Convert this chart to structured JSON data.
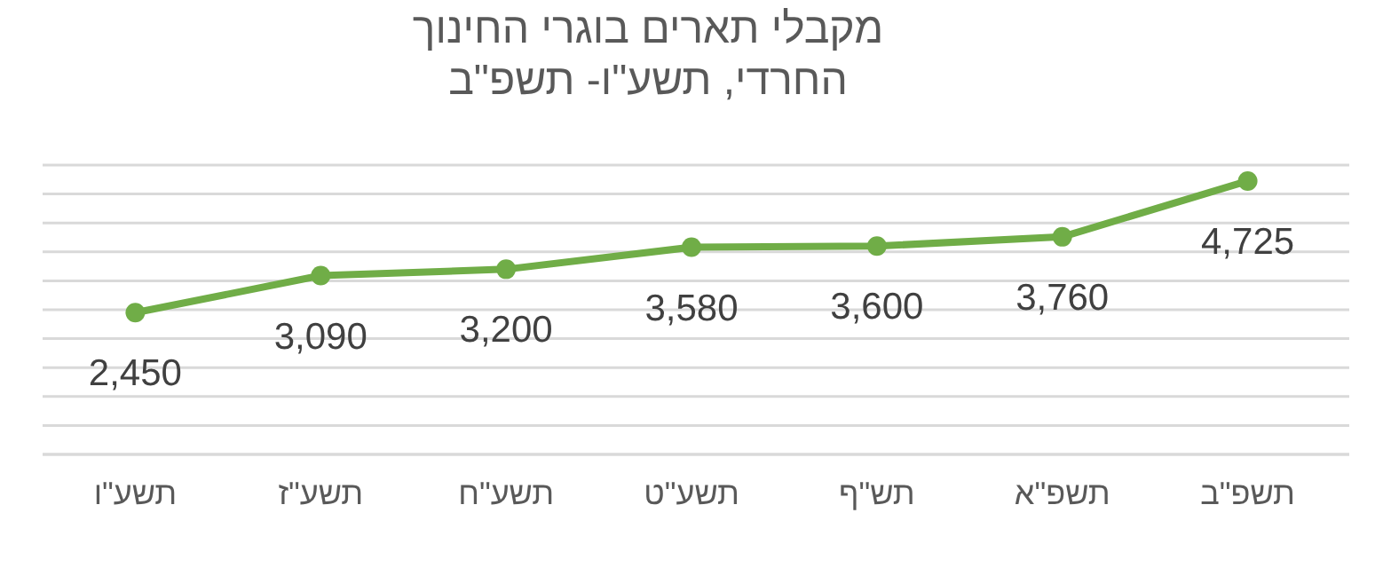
{
  "chart_data": {
    "type": "line",
    "title": "מקבלי תארים בוגרי החינוך החרדי, תשע\"ו- תשפ\"ב",
    "categories": [
      "תשע\"ו",
      "תשע\"ז",
      "תשע\"ח",
      "תשע\"ט",
      "תש\"ף",
      "תשפ\"א",
      "תשפ\"ב"
    ],
    "series": [
      {
        "color": "#70ad47",
        "values": [
          2450,
          3090,
          3200,
          3580,
          3600,
          3760,
          4725
        ],
        "value_labels": [
          "2,450",
          "3,090",
          "3,200",
          "3,580",
          "3,600",
          "3,760",
          "4,725"
        ]
      }
    ],
    "grid": "y",
    "marker": "circle",
    "line_style": "solid"
  }
}
